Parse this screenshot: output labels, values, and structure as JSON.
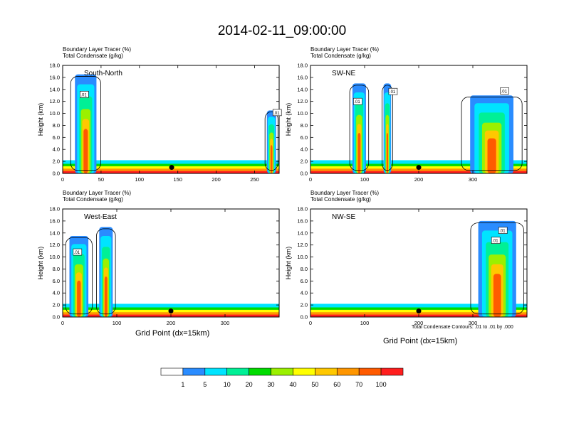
{
  "figure": {
    "title": "2014-02-11_09:00:00",
    "contour_note": "Total Condensate Contours: .01 to .01 by .000"
  },
  "colorbar": {
    "labels": [
      "1",
      "5",
      "10",
      "20",
      "30",
      "40",
      "50",
      "60",
      "70",
      "100"
    ],
    "colors": [
      "#ffffff",
      "#2a8cff",
      "#00e4ff",
      "#00f096",
      "#00dc00",
      "#9bf000",
      "#ffff00",
      "#ffc800",
      "#ff9600",
      "#ff5a00",
      "#ff1e1e"
    ]
  },
  "chart_data": [
    {
      "type": "heatmap",
      "panel": "South-North",
      "subtitle_lines": [
        "Boundary Layer Tracer   (%)",
        "Total Condensate   (g/kg)"
      ],
      "ylabel": "Height (km)",
      "xlabel": "",
      "xlim": [
        0,
        282
      ],
      "ylim": [
        0,
        18
      ],
      "xticks": [
        0,
        50,
        100,
        150,
        200,
        250
      ],
      "yticks": [
        "0.0",
        "2.0",
        "4.0",
        "6.0",
        "8.0",
        "10.0",
        "12.0",
        "14.0",
        "16.0",
        "18.0"
      ],
      "contour_labels": [
        ".01",
        ".01"
      ],
      "marker": {
        "x": 142,
        "y": 1.0
      },
      "plumes": [
        {
          "x": 30,
          "width": 28,
          "top": 16.5
        },
        {
          "x": 272,
          "width": 12,
          "top": 10.5
        }
      ]
    },
    {
      "type": "heatmap",
      "panel": "SW-NE",
      "subtitle_lines": [
        "Boundary Layer Tracer   (%)",
        "Total Condensate   (g/kg)"
      ],
      "ylabel": "Height (km)",
      "xlabel": "",
      "xlim": [
        0,
        400
      ],
      "ylim": [
        0,
        18
      ],
      "xticks": [
        0,
        100,
        200,
        300
      ],
      "yticks": [
        "0.0",
        "2.0",
        "4.0",
        "6.0",
        "8.0",
        "10.0",
        "12.0",
        "14.0",
        "16.0",
        "18.0"
      ],
      "contour_labels": [
        ".01",
        ".01",
        ".01"
      ],
      "marker": {
        "x": 200,
        "y": 1.0
      },
      "plumes": [
        {
          "x": 90,
          "width": 25,
          "top": 15.0
        },
        {
          "x": 142,
          "width": 14,
          "top": 15.0
        },
        {
          "x": 335,
          "width": 80,
          "top": 13.0
        }
      ]
    },
    {
      "type": "heatmap",
      "panel": "West-East",
      "subtitle_lines": [
        "Boundary Layer Tracer   (%)",
        "Total Condensate   (g/kg)"
      ],
      "ylabel": "Height (km)",
      "xlabel": "",
      "xlim": [
        0,
        400
      ],
      "ylim": [
        0,
        18
      ],
      "xticks": [
        0,
        100,
        200,
        300
      ],
      "yticks": [
        "0.0",
        "2.0",
        "4.0",
        "6.0",
        "8.0",
        "10.0",
        "12.0",
        "14.0",
        "16.0",
        "18.0"
      ],
      "contour_labels": [
        ".01"
      ],
      "marker": {
        "x": 200,
        "y": 1.0
      },
      "plumes": [
        {
          "x": 30,
          "width": 35,
          "top": 13.5
        },
        {
          "x": 80,
          "width": 25,
          "top": 15.0
        }
      ]
    },
    {
      "type": "heatmap",
      "panel": "NW-SE",
      "subtitle_lines": [
        "Boundary Layer Tracer   (%)",
        "Total Condensate   (g/kg)"
      ],
      "ylabel": "Height (km)",
      "xlabel": "",
      "xlim": [
        0,
        400
      ],
      "ylim": [
        0,
        18
      ],
      "xticks": [
        0,
        100,
        200,
        300
      ],
      "yticks": [
        "0.0",
        "2.0",
        "4.0",
        "6.0",
        "8.0",
        "10.0",
        "12.0",
        "14.0",
        "16.0",
        "18.0"
      ],
      "contour_labels": [
        ".01",
        ".01"
      ],
      "marker": {
        "x": 200,
        "y": 1.0
      },
      "plumes": [
        {
          "x": 345,
          "width": 70,
          "top": 16.0
        }
      ]
    }
  ],
  "shared_xlabel": "Grid Point (dx=15km)"
}
